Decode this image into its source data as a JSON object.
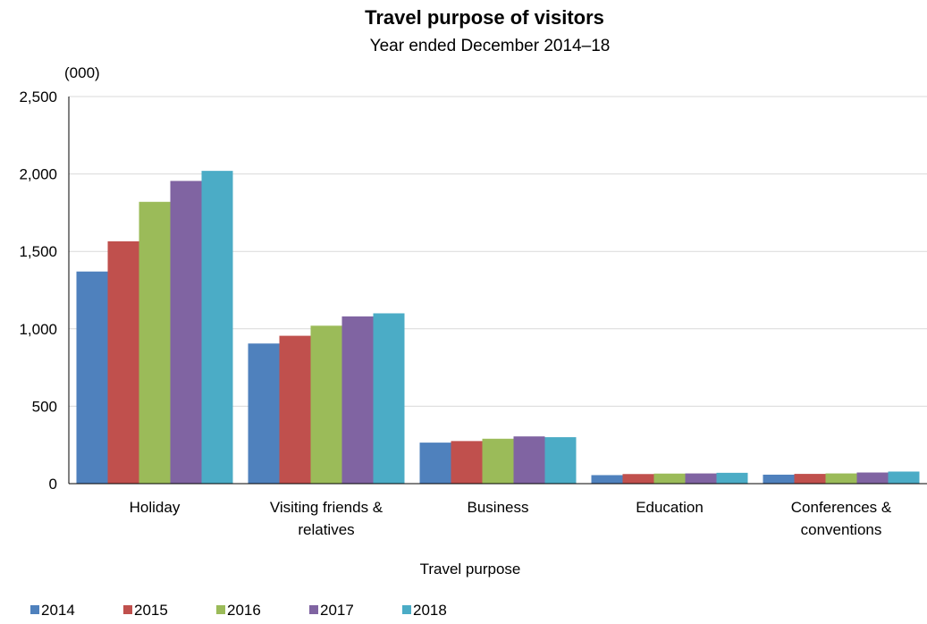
{
  "chart_data": {
    "type": "bar",
    "title": "Travel purpose of visitors",
    "subtitle": "Year ended December 2014–18",
    "unit_label": "(000)",
    "xlabel": "Travel purpose",
    "ylabel": "",
    "ylim": [
      0,
      2500
    ],
    "yticks": [
      {
        "value": 0,
        "label": "0"
      },
      {
        "value": 500,
        "label": "500"
      },
      {
        "value": 1000,
        "label": "1,000"
      },
      {
        "value": 1500,
        "label": "1,500"
      },
      {
        "value": 2000,
        "label": "2,000"
      },
      {
        "value": 2500,
        "label": "2,500"
      }
    ],
    "categories": [
      [
        "Holiday"
      ],
      [
        "Visiting friends &",
        "relatives"
      ],
      [
        "Business"
      ],
      [
        "Education"
      ],
      [
        "Conferences &",
        "conventions"
      ]
    ],
    "series": [
      {
        "name": "2014",
        "color": "#4F81BD",
        "values": [
          1370,
          905,
          265,
          55,
          58
        ]
      },
      {
        "name": "2015",
        "color": "#C0504D",
        "values": [
          1565,
          955,
          275,
          62,
          63
        ]
      },
      {
        "name": "2016",
        "color": "#9BBB59",
        "values": [
          1820,
          1020,
          290,
          65,
          66
        ]
      },
      {
        "name": "2017",
        "color": "#8064A2",
        "values": [
          1955,
          1080,
          305,
          66,
          72
        ]
      },
      {
        "name": "2018",
        "color": "#4BACC6",
        "values": [
          2020,
          1100,
          300,
          70,
          78
        ]
      }
    ],
    "grid": true,
    "legend_position": "bottom-left"
  }
}
